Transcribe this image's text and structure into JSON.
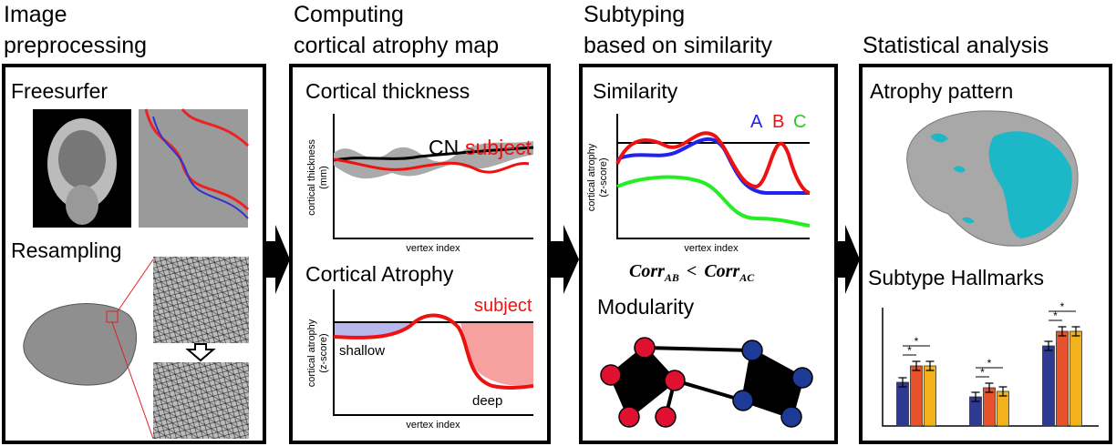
{
  "columns": [
    {
      "title": [
        "Image",
        "preprocessing"
      ],
      "sections": [
        "Freesurfer",
        "Resampling"
      ]
    },
    {
      "title": [
        "Computing",
        "cortical atrophy map"
      ],
      "thickness": {
        "title": "Cortical thickness",
        "legend": [
          "CN",
          "subject"
        ],
        "ylabel": [
          "cortical thickness",
          "(mm)"
        ],
        "xlabel": "vertex index"
      },
      "atrophy": {
        "title": "Cortical Atrophy",
        "legend": "subject",
        "ylabel": [
          "cortical atrophy",
          "(z-score)"
        ],
        "xlabel": "vertex index",
        "annotations": [
          "shallow",
          "deep"
        ]
      }
    },
    {
      "title": [
        "Subtyping",
        "based on similarity"
      ],
      "similarity": {
        "title": "Similarity",
        "legend": [
          "A",
          "B",
          "C"
        ],
        "ylabel": [
          "cortical atrophy",
          "(z-score)"
        ],
        "xlabel": "vertex index",
        "formula": [
          "Corr",
          "AB",
          "<",
          "Corr",
          "AC"
        ]
      },
      "modularity": {
        "title": "Modularity"
      }
    },
    {
      "title": [
        "Statistical analysis"
      ],
      "pattern": {
        "title": "Atrophy pattern"
      },
      "hallmarks": {
        "title": "Subtype Hallmarks",
        "colors": [
          "#2e3a92",
          "#e4532b",
          "#f3b11c"
        ],
        "ylim": [
          0,
          130
        ],
        "groups": [
          [
            48,
            66,
            66
          ],
          [
            32,
            42,
            38
          ],
          [
            88,
            104,
            104
          ]
        ],
        "stars": [
          "*",
          "*",
          "*",
          "*",
          "*",
          "*"
        ]
      }
    }
  ]
}
